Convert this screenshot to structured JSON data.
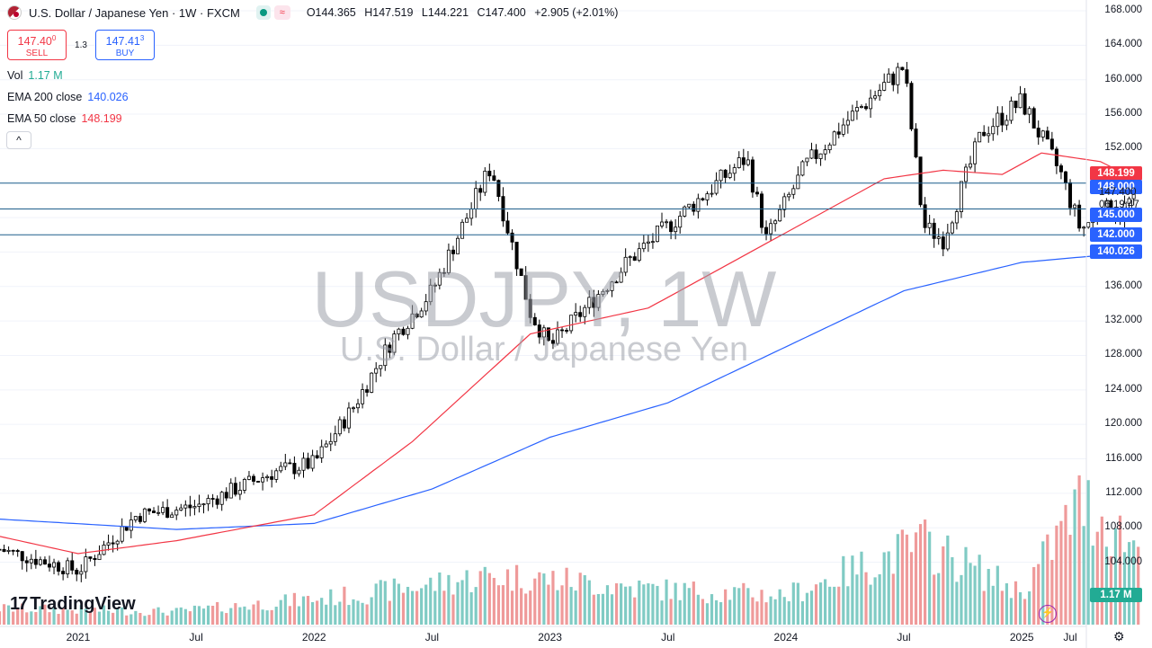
{
  "header": {
    "symbol_title": "U.S. Dollar / Japanese Yen · 1W · FXCM",
    "ohlc": [
      {
        "k": "O",
        "v": "144.365"
      },
      {
        "k": "H",
        "v": "147.519"
      },
      {
        "k": "L",
        "v": "144.221"
      },
      {
        "k": "C",
        "v": "147.400"
      }
    ],
    "change": "+2.905 (+2.01%)",
    "wave_icon": "≈"
  },
  "trade": {
    "sell_price": "147.40",
    "sell_price_sup": "0",
    "sell_label": "SELL",
    "spread": "1.3",
    "buy_price": "147.41",
    "buy_price_sup": "3",
    "buy_label": "BUY"
  },
  "indicators": {
    "vol_label": "Vol",
    "vol_value": "1.17 M",
    "ema200_label": "EMA 200 close",
    "ema200_value": "140.026",
    "ema50_label": "EMA 50 close",
    "ema50_value": "148.199",
    "collapse_icon": "^"
  },
  "watermark": {
    "line1": "USDJPY, 1W",
    "line2": "U.S. Dollar / Japanese Yen"
  },
  "price_axis": {
    "labels": [
      "168.000",
      "164.000",
      "160.000",
      "156.000",
      "152.000",
      "148.000",
      "144.000",
      "140.000",
      "136.000",
      "132.000",
      "128.000",
      "124.000",
      "120.000",
      "116.000",
      "112.000",
      "108.000",
      "104.000"
    ],
    "label_values": [
      168,
      164,
      160,
      156,
      152,
      148,
      144,
      140,
      136,
      132,
      128,
      124,
      120,
      116,
      112,
      108,
      104
    ]
  },
  "price_tags": {
    "ema50": {
      "text": "148.199",
      "value": 148.199,
      "color": "#f23645"
    },
    "level148": {
      "text": "148.000",
      "value": 148.0,
      "color": "#2962ff"
    },
    "current": {
      "text": "147.400",
      "value": 147.4
    },
    "countdown": "06:19:47",
    "level145": {
      "text": "145.000",
      "value": 145.0,
      "color": "#2962ff"
    },
    "level142": {
      "text": "142.000",
      "value": 142.0,
      "color": "#2962ff"
    },
    "ema200": {
      "text": "140.026",
      "value": 140.026,
      "color": "#2962ff"
    },
    "volume": {
      "text": "1.17 M",
      "color": "#22ab94"
    }
  },
  "time_axis": {
    "labels": [
      "2021",
      "Jul",
      "2022",
      "Jul",
      "2023",
      "Jul",
      "2024",
      "Jul",
      "2025",
      "Jul"
    ]
  },
  "branding": {
    "logo_text": "TradingView",
    "logo_mark": "17"
  },
  "colors": {
    "up": "#089981",
    "down": "#f23645",
    "ema50": "#f23645",
    "ema200": "#2962ff",
    "hline": "#1f5f8b",
    "vol_up": "#80cbc4",
    "vol_down": "#ef9a9a"
  },
  "chart_data": {
    "type": "candlestick",
    "symbol": "USDJPY",
    "interval": "1W",
    "horizontal_levels": [
      148.0,
      145.0,
      142.0
    ],
    "ylim": [
      102,
      168
    ],
    "x_start": "2020-09",
    "price_anchors": [
      {
        "t": "2020-09",
        "p": 105.5
      },
      {
        "t": "2021-01",
        "p": 103.0
      },
      {
        "t": "2021-04",
        "p": 109.5
      },
      {
        "t": "2021-07",
        "p": 110.5
      },
      {
        "t": "2021-11",
        "p": 114.5
      },
      {
        "t": "2022-01",
        "p": 115.5
      },
      {
        "t": "2022-03",
        "p": 122.0
      },
      {
        "t": "2022-05",
        "p": 130.0
      },
      {
        "t": "2022-07",
        "p": 135.5
      },
      {
        "t": "2022-10",
        "p": 150.0
      },
      {
        "t": "2022-12",
        "p": 133.0
      },
      {
        "t": "2023-01",
        "p": 129.0
      },
      {
        "t": "2023-03",
        "p": 134.0
      },
      {
        "t": "2023-05",
        "p": 139.0
      },
      {
        "t": "2023-08",
        "p": 145.0
      },
      {
        "t": "2023-11",
        "p": 151.0
      },
      {
        "t": "2023-12",
        "p": 141.5
      },
      {
        "t": "2024-02",
        "p": 150.0
      },
      {
        "t": "2024-04",
        "p": 155.0
      },
      {
        "t": "2024-07",
        "p": 161.5
      },
      {
        "t": "2024-08",
        "p": 143.0
      },
      {
        "t": "2024-09",
        "p": 141.5
      },
      {
        "t": "2024-11",
        "p": 154.0
      },
      {
        "t": "2025-01",
        "p": 157.5
      },
      {
        "t": "2025-03",
        "p": 149.0
      },
      {
        "t": "2025-04",
        "p": 142.5
      },
      {
        "t": "2025-05",
        "p": 145.0
      },
      {
        "t": "2025-06",
        "p": 144.5
      },
      {
        "t": "2025-07",
        "p": 147.4
      }
    ],
    "ema50_anchors": [
      {
        "t": "2020-09",
        "p": 107.0
      },
      {
        "t": "2021-01",
        "p": 105.0
      },
      {
        "t": "2021-06",
        "p": 106.5
      },
      {
        "t": "2022-01",
        "p": 109.5
      },
      {
        "t": "2022-06",
        "p": 118.0
      },
      {
        "t": "2022-12",
        "p": 130.5
      },
      {
        "t": "2023-06",
        "p": 133.5
      },
      {
        "t": "2023-12",
        "p": 141.0
      },
      {
        "t": "2024-06",
        "p": 148.5
      },
      {
        "t": "2024-09",
        "p": 149.5
      },
      {
        "t": "2024-12",
        "p": 149.0
      },
      {
        "t": "2025-02",
        "p": 151.5
      },
      {
        "t": "2025-05",
        "p": 150.5
      },
      {
        "t": "2025-07",
        "p": 148.199
      }
    ],
    "ema200_anchors": [
      {
        "t": "2020-09",
        "p": 109.0
      },
      {
        "t": "2021-06",
        "p": 107.8
      },
      {
        "t": "2022-01",
        "p": 108.5
      },
      {
        "t": "2022-07",
        "p": 112.5
      },
      {
        "t": "2023-01",
        "p": 118.5
      },
      {
        "t": "2023-07",
        "p": 122.5
      },
      {
        "t": "2024-01",
        "p": 129.0
      },
      {
        "t": "2024-07",
        "p": 135.5
      },
      {
        "t": "2025-01",
        "p": 138.8
      },
      {
        "t": "2025-07",
        "p": 140.026
      }
    ],
    "volume_anchors": [
      {
        "t": "2020-09",
        "v": 0.25
      },
      {
        "t": "2021-06",
        "v": 0.2
      },
      {
        "t": "2022-03",
        "v": 0.45
      },
      {
        "t": "2022-10",
        "v": 0.75
      },
      {
        "t": "2023-01",
        "v": 0.7
      },
      {
        "t": "2023-06",
        "v": 0.55
      },
      {
        "t": "2024-01",
        "v": 0.45
      },
      {
        "t": "2024-08",
        "v": 1.25
      },
      {
        "t": "2025-01",
        "v": 0.5
      },
      {
        "t": "2025-04",
        "v": 1.9
      },
      {
        "t": "2025-07",
        "v": 1.17
      }
    ],
    "volume_max": 2.0,
    "last_volume": "1.17 M"
  }
}
